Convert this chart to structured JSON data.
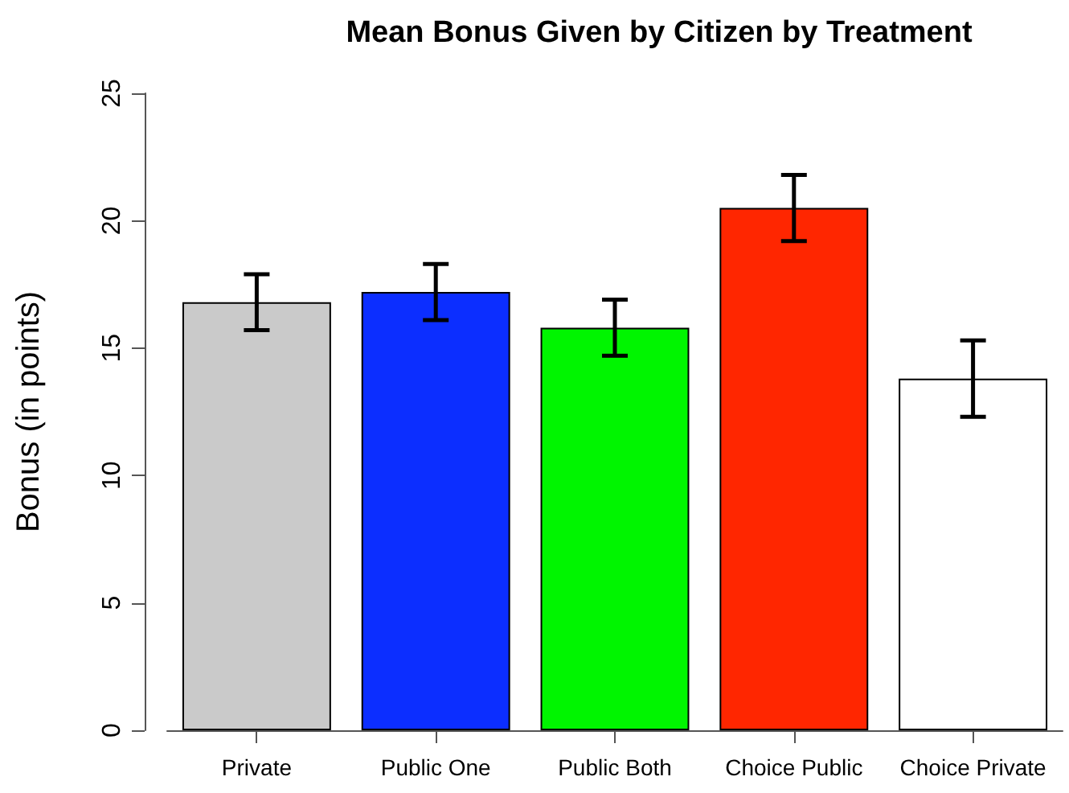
{
  "chart_data": {
    "type": "bar",
    "title": "Mean Bonus Given by Citizen by Treatment",
    "ylabel": "Bonus (in points)",
    "categories": [
      "Private",
      "Public One",
      "Public Both",
      "Choice Public",
      "Choice Private"
    ],
    "values": [
      16.8,
      17.2,
      15.8,
      20.5,
      13.8
    ],
    "errors": [
      1.1,
      1.1,
      1.1,
      1.3,
      1.5
    ],
    "colors": [
      "#cacaca",
      "#0c2eff",
      "#00f500",
      "#ff2600",
      "#ffffff"
    ],
    "ylim": [
      0,
      25
    ],
    "yticks": [
      0,
      5,
      10,
      15,
      20,
      25
    ],
    "grid": false
  }
}
